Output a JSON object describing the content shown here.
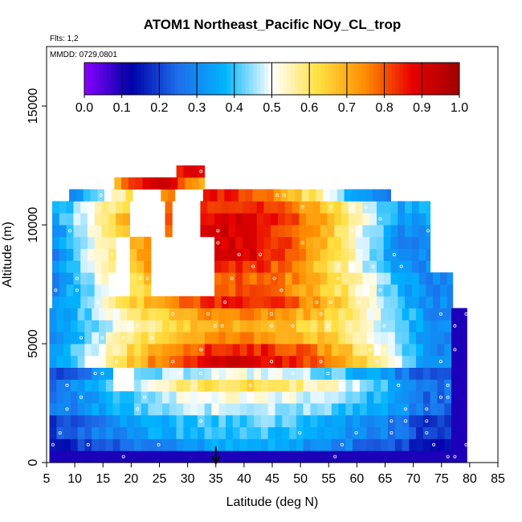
{
  "chart_data": {
    "type": "heatmap",
    "title": "ATOM1 Northeast_Pacific NOy_CL_trop",
    "flights_label": "Flts: 1,2",
    "mmdd_label": "MMDD: 0729,0801",
    "xlabel": "Latitude (deg N)",
    "ylabel": "Altitude (m)",
    "xlim": [
      5,
      85
    ],
    "ylim": [
      0,
      17500
    ],
    "x_ticks": [
      "5",
      "10",
      "15",
      "20",
      "25",
      "30",
      "35",
      "40",
      "45",
      "50",
      "55",
      "60",
      "65",
      "70",
      "75",
      "80",
      "85"
    ],
    "y_ticks": [
      "0",
      "5000",
      "10000",
      "15000"
    ],
    "colorbar": {
      "range": [
        0,
        1
      ],
      "tick_labels": [
        "0.0",
        "0.1",
        "0.2",
        "0.3",
        "0.4",
        "0.5",
        "0.6",
        "0.7",
        "0.8",
        "0.9",
        "1.0"
      ],
      "colors": [
        "#8B00FF",
        "#0000A8",
        "#1E6EEB",
        "#00B4FF",
        "#FFFFFF",
        "#FFE040",
        "#FF8C00",
        "#E80000",
        "#A00000"
      ]
    },
    "arrow_marker_latitude": 35,
    "grid": false,
    "legend_placement": "top (colorbar inside plot)",
    "altitude_bands_m": [
      {
        "bottom": 0,
        "top": 500,
        "value_range": [
          0.1,
          0.1
        ]
      },
      {
        "bottom": 500,
        "top": 1000,
        "value_range": [
          0.15,
          0.35
        ]
      },
      {
        "bottom": 1000,
        "top": 1500,
        "value_range": [
          0.2,
          0.4
        ]
      },
      {
        "bottom": 1500,
        "top": 2000,
        "value_range": [
          0.2,
          0.42
        ]
      },
      {
        "bottom": 2000,
        "top": 2500,
        "value_range": [
          0.25,
          0.48
        ]
      },
      {
        "bottom": 2500,
        "top": 3000,
        "value_range": [
          0.25,
          0.52
        ]
      },
      {
        "bottom": 3000,
        "top": 3500,
        "value_range": [
          0.25,
          0.62
        ]
      },
      {
        "bottom": 3500,
        "top": 4000,
        "value_range": [
          0.2,
          0.5
        ]
      },
      {
        "bottom": 4000,
        "top": 4500,
        "value_range": [
          0.3,
          0.9
        ]
      },
      {
        "bottom": 4500,
        "top": 5000,
        "value_range": [
          0.3,
          0.85
        ]
      },
      {
        "bottom": 5000,
        "top": 5500,
        "value_range": [
          0.3,
          0.75
        ]
      },
      {
        "bottom": 5500,
        "top": 6000,
        "value_range": [
          0.3,
          0.7
        ]
      },
      {
        "bottom": 6000,
        "top": 6500,
        "value_range": [
          0.3,
          0.75
        ]
      },
      {
        "bottom": 6500,
        "top": 7000,
        "value_range": [
          0.3,
          0.85
        ]
      },
      {
        "bottom": 7000,
        "top": 7500,
        "value_range": [
          0.3,
          0.8
        ]
      },
      {
        "bottom": 7500,
        "top": 8000,
        "value_range": [
          0.3,
          0.8
        ]
      },
      {
        "bottom": 8000,
        "top": 8500,
        "value_range": [
          0.3,
          0.85
        ]
      },
      {
        "bottom": 8500,
        "top": 9000,
        "value_range": [
          0.3,
          0.9
        ]
      },
      {
        "bottom": 9000,
        "top": 9500,
        "value_range": [
          0.3,
          0.9
        ]
      },
      {
        "bottom": 9500,
        "top": 10000,
        "value_range": [
          0.3,
          0.9
        ]
      },
      {
        "bottom": 10000,
        "top": 10500,
        "value_range": [
          0.35,
          0.9
        ]
      },
      {
        "bottom": 10500,
        "top": 11000,
        "value_range": [
          0.35,
          0.85
        ]
      },
      {
        "bottom": 11000,
        "top": 11500,
        "value_range": [
          0.3,
          0.85
        ]
      },
      {
        "bottom": 11500,
        "top": 12000,
        "value_range": [
          0.7,
          0.9
        ]
      },
      {
        "bottom": 12000,
        "top": 12500,
        "value_range": [
          0.85,
          0.92
        ]
      }
    ]
  }
}
